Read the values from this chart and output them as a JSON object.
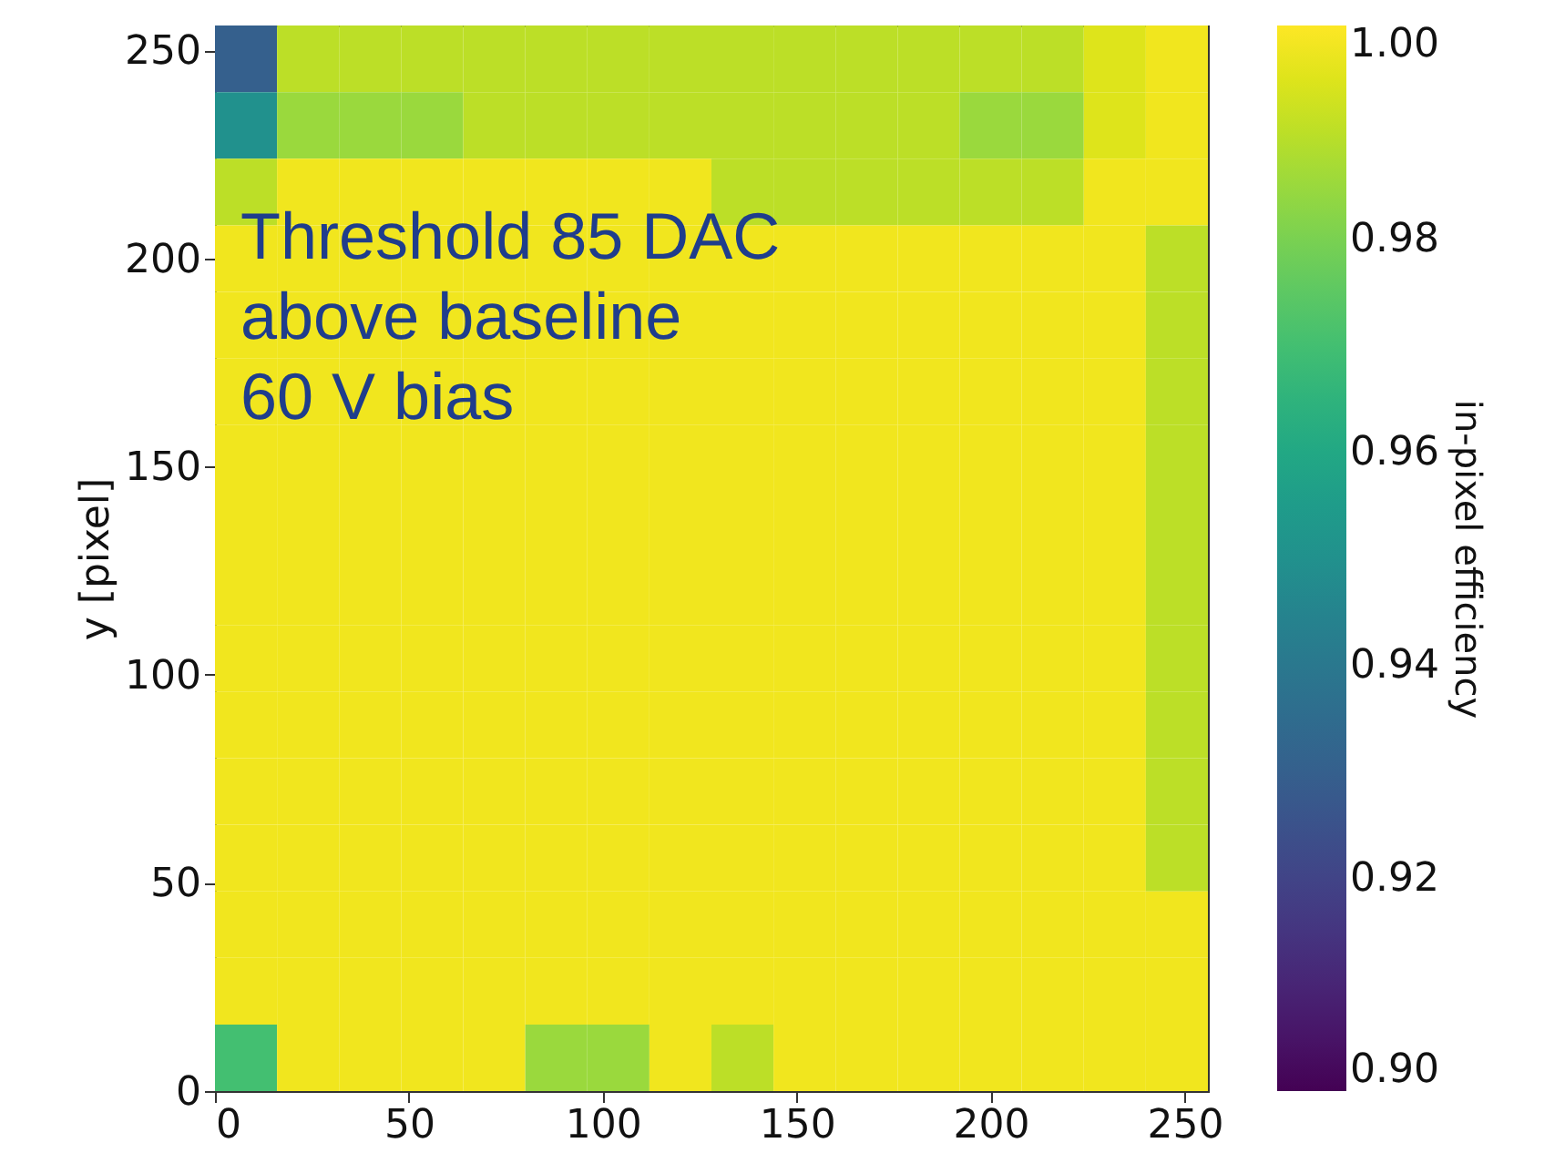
{
  "chart_data": {
    "type": "heatmap",
    "ylabel": "y [pixel]",
    "clabel": "in-pixel efficiency",
    "xlim": [
      0,
      256
    ],
    "ylim": [
      0,
      256
    ],
    "xticks": [
      0,
      50,
      100,
      150,
      200,
      250
    ],
    "yticks": [
      0,
      50,
      100,
      150,
      200,
      250
    ],
    "clim": [
      0.9,
      1.0
    ],
    "cticks": [
      {
        "value": 0.9,
        "label": "0.90"
      },
      {
        "value": 0.92,
        "label": "0.92"
      },
      {
        "value": 0.94,
        "label": "0.94"
      },
      {
        "value": 0.96,
        "label": "0.96"
      },
      {
        "value": 0.98,
        "label": "0.98"
      },
      {
        "value": 1.0,
        "label": "1.00"
      }
    ],
    "annotations": [
      "Threshold 85 DAC\nabove baseline\n60 V bias"
    ],
    "cells": [
      [
        0.93,
        0.99,
        0.99,
        0.99,
        0.99,
        0.99,
        0.99,
        0.99,
        0.99,
        0.99,
        0.99,
        0.99,
        0.99,
        0.99,
        0.995,
        0.998
      ],
      [
        0.95,
        0.985,
        0.985,
        0.985,
        0.99,
        0.99,
        0.99,
        0.99,
        0.99,
        0.99,
        0.99,
        0.99,
        0.985,
        0.985,
        0.995,
        0.998
      ],
      [
        0.99,
        0.998,
        0.998,
        0.998,
        0.998,
        0.998,
        0.998,
        0.998,
        0.99,
        0.99,
        0.99,
        0.99,
        0.99,
        0.99,
        0.998,
        0.998
      ],
      [
        0.998,
        0.998,
        0.998,
        0.998,
        0.998,
        0.998,
        0.998,
        0.998,
        0.998,
        0.998,
        0.998,
        0.998,
        0.998,
        0.998,
        0.998,
        0.99
      ],
      [
        0.998,
        0.998,
        0.998,
        0.998,
        0.998,
        0.998,
        0.998,
        0.998,
        0.998,
        0.998,
        0.998,
        0.998,
        0.998,
        0.998,
        0.998,
        0.99
      ],
      [
        0.998,
        0.998,
        0.998,
        0.998,
        0.998,
        0.998,
        0.998,
        0.998,
        0.998,
        0.998,
        0.998,
        0.998,
        0.998,
        0.998,
        0.998,
        0.99
      ],
      [
        0.998,
        0.998,
        0.998,
        0.998,
        0.998,
        0.998,
        0.998,
        0.998,
        0.998,
        0.998,
        0.998,
        0.998,
        0.998,
        0.998,
        0.998,
        0.99
      ],
      [
        0.998,
        0.998,
        0.998,
        0.998,
        0.998,
        0.998,
        0.998,
        0.998,
        0.998,
        0.998,
        0.998,
        0.998,
        0.998,
        0.998,
        0.998,
        0.99
      ],
      [
        0.998,
        0.998,
        0.998,
        0.998,
        0.998,
        0.998,
        0.998,
        0.998,
        0.998,
        0.998,
        0.998,
        0.998,
        0.998,
        0.998,
        0.998,
        0.99
      ],
      [
        0.998,
        0.998,
        0.998,
        0.998,
        0.998,
        0.998,
        0.998,
        0.998,
        0.998,
        0.998,
        0.998,
        0.998,
        0.998,
        0.998,
        0.998,
        0.99
      ],
      [
        0.998,
        0.998,
        0.998,
        0.998,
        0.998,
        0.998,
        0.998,
        0.998,
        0.998,
        0.998,
        0.998,
        0.998,
        0.998,
        0.998,
        0.998,
        0.99
      ],
      [
        0.998,
        0.998,
        0.998,
        0.998,
        0.998,
        0.998,
        0.998,
        0.998,
        0.998,
        0.998,
        0.998,
        0.998,
        0.998,
        0.998,
        0.998,
        0.99
      ],
      [
        0.998,
        0.998,
        0.998,
        0.998,
        0.998,
        0.998,
        0.998,
        0.998,
        0.998,
        0.998,
        0.998,
        0.998,
        0.998,
        0.998,
        0.998,
        0.99
      ],
      [
        0.998,
        0.998,
        0.998,
        0.998,
        0.998,
        0.998,
        0.998,
        0.998,
        0.998,
        0.998,
        0.998,
        0.998,
        0.998,
        0.998,
        0.998,
        0.998
      ],
      [
        0.998,
        0.998,
        0.998,
        0.998,
        0.998,
        0.998,
        0.998,
        0.998,
        0.998,
        0.998,
        0.998,
        0.998,
        0.998,
        0.998,
        0.998,
        0.998
      ],
      [
        0.97,
        0.998,
        0.998,
        0.998,
        0.998,
        0.985,
        0.985,
        0.998,
        0.99,
        0.998,
        0.998,
        0.998,
        0.998,
        0.998,
        0.998,
        0.998
      ]
    ]
  }
}
